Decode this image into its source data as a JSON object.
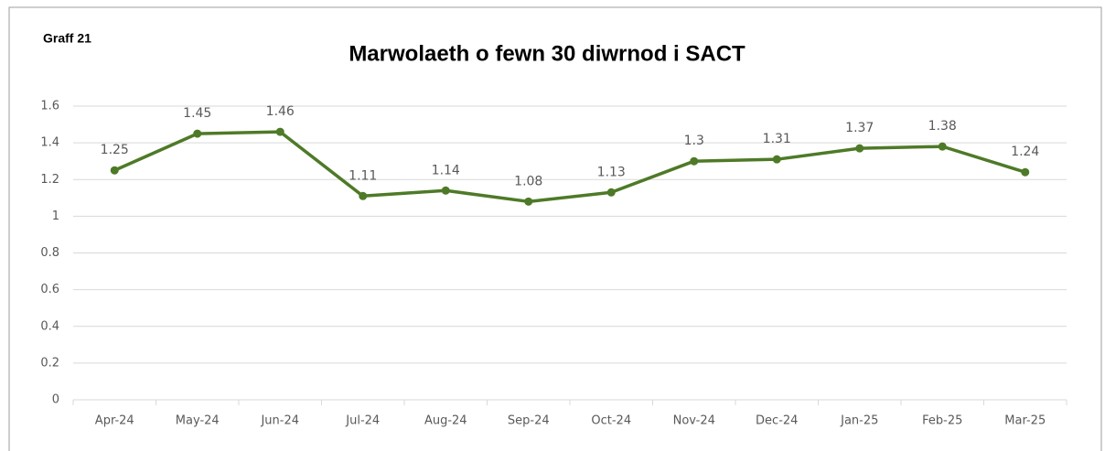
{
  "label": "Graff 21",
  "chart_data": {
    "type": "line",
    "title": "Marwolaeth o fewn 30 diwrnod i SACT",
    "categories": [
      "Apr-24",
      "May-24",
      "Jun-24",
      "Jul-24",
      "Aug-24",
      "Sep-24",
      "Oct-24",
      "Nov-24",
      "Dec-24",
      "Jan-25",
      "Feb-25",
      "Mar-25"
    ],
    "series": [
      {
        "name": "Marwolaeth o fewn 30 diwrnod i SACT",
        "color": "#4e7a27",
        "values": [
          1.25,
          1.45,
          1.46,
          1.11,
          1.14,
          1.08,
          1.13,
          1.3,
          1.31,
          1.37,
          1.38,
          1.24
        ]
      }
    ],
    "ylim": [
      0,
      1.6
    ],
    "yticks": [
      0,
      0.2,
      0.4,
      0.6,
      0.8,
      1,
      1.2,
      1.4,
      1.6
    ],
    "grid": true
  }
}
